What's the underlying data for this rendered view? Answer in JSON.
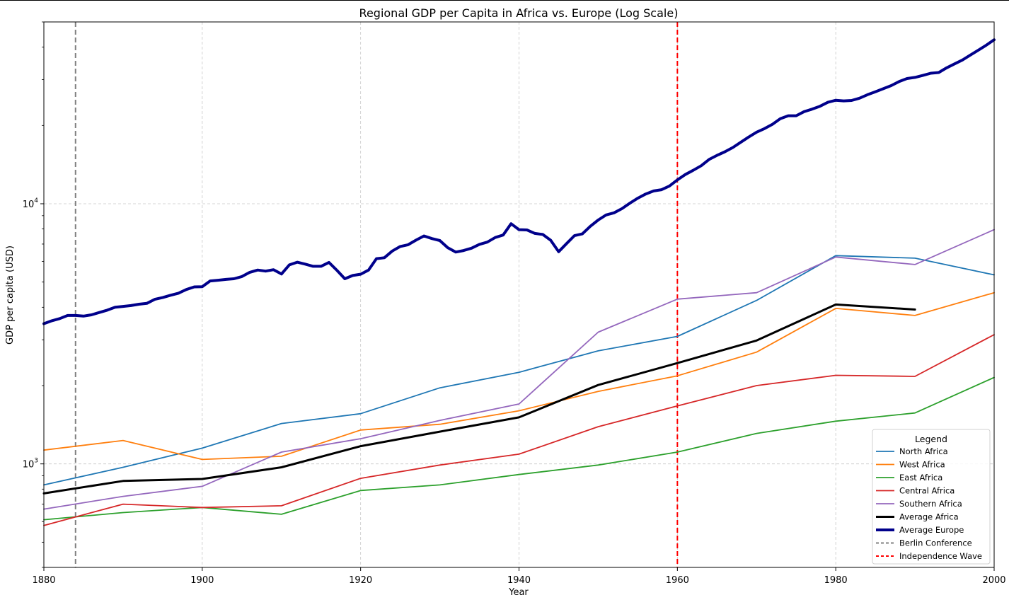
{
  "chart_data": {
    "type": "line",
    "title": "Regional GDP per Capita in Africa vs. Europe (Log Scale)",
    "xlabel": "Year",
    "ylabel": "GDP per capita (USD)",
    "xlim": [
      1880,
      2000
    ],
    "ylim": [
      400,
      50000
    ],
    "yscale": "log",
    "grid": true,
    "legend": {
      "title": "Legend",
      "placement": "lower-right"
    },
    "x_ticks": [
      1880,
      1900,
      1920,
      1940,
      1960,
      1980,
      2000
    ],
    "y_ticks": [
      {
        "value": 1000,
        "base": "10",
        "exp": "3"
      },
      {
        "value": 10000,
        "base": "10",
        "exp": "4"
      }
    ],
    "series": [
      {
        "name": "North Africa",
        "color": "#1f77b4",
        "width": 1.8,
        "x": [
          1880,
          1890,
          1900,
          1910,
          1920,
          1930,
          1940,
          1950,
          1960,
          1970,
          1980,
          1990,
          2000
        ],
        "y": [
          830,
          970,
          1150,
          1430,
          1560,
          1960,
          2250,
          2720,
          3090,
          4250,
          6320,
          6180,
          5330
        ]
      },
      {
        "name": "West Africa",
        "color": "#ff7f0e",
        "width": 1.8,
        "x": [
          1880,
          1890,
          1900,
          1910,
          1920,
          1930,
          1940,
          1950,
          1960,
          1970,
          1980,
          1990,
          2000
        ],
        "y": [
          1130,
          1230,
          1040,
          1070,
          1350,
          1420,
          1600,
          1900,
          2180,
          2690,
          3960,
          3720,
          4550
        ]
      },
      {
        "name": "East Africa",
        "color": "#2ca02c",
        "width": 1.8,
        "x": [
          1880,
          1890,
          1900,
          1910,
          1920,
          1930,
          1940,
          1950,
          1960,
          1970,
          1980,
          1990,
          2000
        ],
        "y": [
          610,
          650,
          680,
          640,
          790,
          830,
          910,
          990,
          1110,
          1310,
          1460,
          1570,
          2150
        ]
      },
      {
        "name": "Central Africa",
        "color": "#d62728",
        "width": 1.8,
        "x": [
          1880,
          1890,
          1900,
          1910,
          1920,
          1930,
          1940,
          1950,
          1960,
          1970,
          1980,
          1990,
          2000
        ],
        "y": [
          580,
          700,
          680,
          690,
          880,
          990,
          1090,
          1390,
          1670,
          2000,
          2190,
          2170,
          3140
        ]
      },
      {
        "name": "Southern Africa",
        "color": "#9467bd",
        "width": 1.8,
        "x": [
          1880,
          1890,
          1900,
          1910,
          1920,
          1930,
          1940,
          1950,
          1960,
          1970,
          1980,
          1990,
          2000
        ],
        "y": [
          670,
          750,
          820,
          1110,
          1250,
          1470,
          1700,
          3210,
          4300,
          4550,
          6240,
          5840,
          7950
        ]
      },
      {
        "name": "Average Africa",
        "color": "#000000",
        "width": 3,
        "x": [
          1880,
          1890,
          1900,
          1910,
          1920,
          1930,
          1940,
          1950,
          1960,
          1970,
          1980,
          1990
        ],
        "y": [
          770,
          860,
          875,
          970,
          1170,
          1330,
          1510,
          2010,
          2440,
          2980,
          4100,
          3920
        ]
      },
      {
        "name": "Average Europe",
        "color": "#00008b",
        "width": 4,
        "x": [
          1880,
          1881,
          1882,
          1883,
          1884,
          1885,
          1886,
          1887,
          1888,
          1889,
          1890,
          1891,
          1892,
          1893,
          1894,
          1895,
          1896,
          1897,
          1898,
          1899,
          1900,
          1901,
          1902,
          1903,
          1904,
          1905,
          1906,
          1907,
          1908,
          1909,
          1910,
          1911,
          1912,
          1913,
          1914,
          1915,
          1916,
          1917,
          1918,
          1919,
          1920,
          1921,
          1922,
          1923,
          1924,
          1925,
          1926,
          1927,
          1928,
          1929,
          1930,
          1931,
          1932,
          1933,
          1934,
          1935,
          1936,
          1937,
          1938,
          1939,
          1940,
          1941,
          1942,
          1943,
          1944,
          1945,
          1946,
          1947,
          1948,
          1949,
          1950,
          1951,
          1952,
          1953,
          1954,
          1955,
          1956,
          1957,
          1958,
          1959,
          1960,
          1961,
          1962,
          1963,
          1964,
          1965,
          1966,
          1967,
          1968,
          1969,
          1970,
          1971,
          1972,
          1973,
          1974,
          1975,
          1976,
          1977,
          1978,
          1979,
          1980,
          1981,
          1982,
          1983,
          1984,
          1985,
          1986,
          1987,
          1988,
          1989,
          1990,
          1991,
          1992,
          1993,
          1994,
          1995,
          1996,
          1997,
          1998,
          1999,
          2000
        ],
        "y": [
          3460,
          3550,
          3620,
          3720,
          3720,
          3700,
          3740,
          3820,
          3900,
          4000,
          4030,
          4060,
          4110,
          4140,
          4290,
          4360,
          4450,
          4530,
          4680,
          4790,
          4800,
          5050,
          5080,
          5120,
          5150,
          5250,
          5450,
          5560,
          5510,
          5580,
          5370,
          5820,
          5960,
          5860,
          5750,
          5750,
          5950,
          5550,
          5150,
          5300,
          5360,
          5560,
          6150,
          6200,
          6580,
          6850,
          6960,
          7250,
          7520,
          7350,
          7220,
          6780,
          6520,
          6610,
          6750,
          6980,
          7120,
          7420,
          7580,
          8380,
          7950,
          7930,
          7690,
          7620,
          7240,
          6540,
          7030,
          7540,
          7660,
          8190,
          8660,
          9060,
          9230,
          9580,
          10050,
          10510,
          10900,
          11200,
          11330,
          11700,
          12350,
          12950,
          13450,
          14000,
          14800,
          15350,
          15850,
          16450,
          17230,
          18050,
          18850,
          19450,
          20200,
          21230,
          21800,
          21800,
          22600,
          23100,
          23700,
          24550,
          25000,
          24850,
          24950,
          25450,
          26250,
          26950,
          27680,
          28450,
          29500,
          30300,
          30600,
          31150,
          31750,
          31950,
          33300,
          34500,
          35700,
          37300,
          38950,
          40700,
          42700
        ]
      }
    ],
    "reference_lines": [
      {
        "name": "Berlin Conference",
        "x": 1884,
        "color": "#808080"
      },
      {
        "name": "Independence Wave",
        "x": 1960,
        "color": "#ff0000"
      }
    ]
  }
}
